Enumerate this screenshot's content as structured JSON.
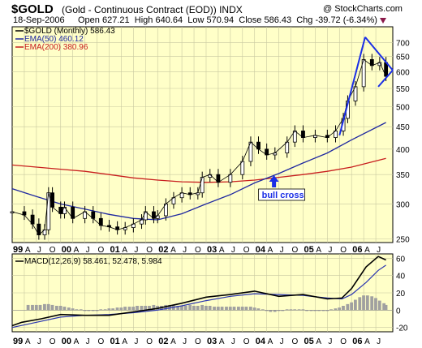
{
  "header": {
    "symbol": "$GOLD",
    "description": "(Gold - Continuous Contract (EOD))",
    "exchange": "INDX",
    "watermark": "@ StockCharts.com",
    "date": "18-Sep-2006",
    "open_label": "Open",
    "open": "627.21",
    "high_label": "High",
    "high": "640.64",
    "low_label": "Low",
    "low": "570.94",
    "close_label": "Close",
    "close": "586.43",
    "chg_label": "Chg",
    "chg": "-39.72 (-6.34%)"
  },
  "colors": {
    "panel_bg": "#ffffc8",
    "price_line": "#000000",
    "ema50": "#1f28a0",
    "ema200": "#c81e1e",
    "trendline": "#1a2ee6",
    "macd_line": "#000000",
    "signal_line": "#2a35b0",
    "histogram": "#a0a0a0",
    "arrow": "#1a2ee6"
  },
  "chart_data": [
    {
      "type": "line",
      "panel": "price",
      "legend": [
        {
          "label": "$GOLD (Monthly) 586.43",
          "color": "#000000"
        },
        {
          "label": "EMA(50) 460.12",
          "color": "#1f28a0"
        },
        {
          "label": "EMA(200) 380.96",
          "color": "#c81e1e"
        }
      ],
      "scale": "log",
      "ylim": [
        245,
        760
      ],
      "y_ticks": [
        250,
        300,
        350,
        400,
        450,
        500,
        550,
        600,
        650,
        700
      ],
      "x_tick_labels": [
        {
          "label": "99",
          "t": 1999.0,
          "bold": true
        },
        {
          "label": "A",
          "t": 1999.25
        },
        {
          "label": "J",
          "t": 1999.5
        },
        {
          "label": "O",
          "t": 1999.75
        },
        {
          "label": "00",
          "t": 2000.0,
          "bold": true
        },
        {
          "label": "A",
          "t": 2000.25
        },
        {
          "label": "J",
          "t": 2000.5
        },
        {
          "label": "O",
          "t": 2000.75
        },
        {
          "label": "01",
          "t": 2001.0,
          "bold": true
        },
        {
          "label": "A",
          "t": 2001.25
        },
        {
          "label": "J",
          "t": 2001.5
        },
        {
          "label": "O",
          "t": 2001.75
        },
        {
          "label": "02",
          "t": 2002.0,
          "bold": true
        },
        {
          "label": "A",
          "t": 2002.25
        },
        {
          "label": "J",
          "t": 2002.5
        },
        {
          "label": "O",
          "t": 2002.75
        },
        {
          "label": "03",
          "t": 2003.0,
          "bold": true
        },
        {
          "label": "A",
          "t": 2003.25
        },
        {
          "label": "J",
          "t": 2003.5
        },
        {
          "label": "O",
          "t": 2003.75
        },
        {
          "label": "04",
          "t": 2004.0,
          "bold": true
        },
        {
          "label": "A",
          "t": 2004.25
        },
        {
          "label": "J",
          "t": 2004.5
        },
        {
          "label": "O",
          "t": 2004.75
        },
        {
          "label": "05",
          "t": 2005.0,
          "bold": true
        },
        {
          "label": "A",
          "t": 2005.25
        },
        {
          "label": "J",
          "t": 2005.5
        },
        {
          "label": "O",
          "t": 2005.75
        },
        {
          "label": "06",
          "t": 2006.0,
          "bold": true
        },
        {
          "label": "A",
          "t": 2006.25
        },
        {
          "label": "J",
          "t": 2006.5
        }
      ],
      "xlim": [
        1999.0,
        2006.85
      ],
      "price": [
        {
          "t": 1999.0,
          "p": 288
        },
        {
          "t": 1999.25,
          "p": 283
        },
        {
          "t": 1999.42,
          "p": 270
        },
        {
          "t": 1999.55,
          "p": 255
        },
        {
          "t": 1999.67,
          "p": 262
        },
        {
          "t": 1999.75,
          "p": 318
        },
        {
          "t": 1999.83,
          "p": 295
        },
        {
          "t": 2000.0,
          "p": 285
        },
        {
          "t": 2000.08,
          "p": 295
        },
        {
          "t": 2000.25,
          "p": 278
        },
        {
          "t": 2000.5,
          "p": 288
        },
        {
          "t": 2000.67,
          "p": 278
        },
        {
          "t": 2000.83,
          "p": 268
        },
        {
          "t": 2001.0,
          "p": 266
        },
        {
          "t": 2001.17,
          "p": 262
        },
        {
          "t": 2001.33,
          "p": 265
        },
        {
          "t": 2001.5,
          "p": 270
        },
        {
          "t": 2001.67,
          "p": 276
        },
        {
          "t": 2001.75,
          "p": 288
        },
        {
          "t": 2001.92,
          "p": 278
        },
        {
          "t": 2002.0,
          "p": 282
        },
        {
          "t": 2002.17,
          "p": 300
        },
        {
          "t": 2002.33,
          "p": 310
        },
        {
          "t": 2002.5,
          "p": 318
        },
        {
          "t": 2002.67,
          "p": 315
        },
        {
          "t": 2002.83,
          "p": 318
        },
        {
          "t": 2002.92,
          "p": 345
        },
        {
          "t": 2003.08,
          "p": 350
        },
        {
          "t": 2003.25,
          "p": 336
        },
        {
          "t": 2003.5,
          "p": 350
        },
        {
          "t": 2003.75,
          "p": 375
        },
        {
          "t": 2003.92,
          "p": 415
        },
        {
          "t": 2004.08,
          "p": 400
        },
        {
          "t": 2004.25,
          "p": 388
        },
        {
          "t": 2004.42,
          "p": 392
        },
        {
          "t": 2004.67,
          "p": 415
        },
        {
          "t": 2004.83,
          "p": 440
        },
        {
          "t": 2005.0,
          "p": 425
        },
        {
          "t": 2005.25,
          "p": 430
        },
        {
          "t": 2005.5,
          "p": 425
        },
        {
          "t": 2005.67,
          "p": 440
        },
        {
          "t": 2005.83,
          "p": 470
        },
        {
          "t": 2005.92,
          "p": 515
        },
        {
          "t": 2006.08,
          "p": 555
        },
        {
          "t": 2006.25,
          "p": 640
        },
        {
          "t": 2006.42,
          "p": 620
        },
        {
          "t": 2006.58,
          "p": 630
        },
        {
          "t": 2006.71,
          "p": 586
        }
      ],
      "ema50": [
        {
          "t": 1999.0,
          "p": 325
        },
        {
          "t": 1999.5,
          "p": 312
        },
        {
          "t": 2000.0,
          "p": 300
        },
        {
          "t": 2000.5,
          "p": 292
        },
        {
          "t": 2001.0,
          "p": 284
        },
        {
          "t": 2001.5,
          "p": 278
        },
        {
          "t": 2002.0,
          "p": 276
        },
        {
          "t": 2002.5,
          "p": 285
        },
        {
          "t": 2003.0,
          "p": 300
        },
        {
          "t": 2003.5,
          "p": 315
        },
        {
          "t": 2004.0,
          "p": 335
        },
        {
          "t": 2004.5,
          "p": 352
        },
        {
          "t": 2005.0,
          "p": 372
        },
        {
          "t": 2005.5,
          "p": 392
        },
        {
          "t": 2006.0,
          "p": 420
        },
        {
          "t": 2006.71,
          "p": 460
        }
      ],
      "ema200": [
        {
          "t": 1999.0,
          "p": 368
        },
        {
          "t": 1999.5,
          "p": 364
        },
        {
          "t": 2000.0,
          "p": 360
        },
        {
          "t": 2000.5,
          "p": 356
        },
        {
          "t": 2001.0,
          "p": 350
        },
        {
          "t": 2001.5,
          "p": 344
        },
        {
          "t": 2002.0,
          "p": 340
        },
        {
          "t": 2002.5,
          "p": 337
        },
        {
          "t": 2003.0,
          "p": 336
        },
        {
          "t": 2003.5,
          "p": 337
        },
        {
          "t": 2004.0,
          "p": 340
        },
        {
          "t": 2004.5,
          "p": 345
        },
        {
          "t": 2005.0,
          "p": 350
        },
        {
          "t": 2005.5,
          "p": 356
        },
        {
          "t": 2006.0,
          "p": 364
        },
        {
          "t": 2006.71,
          "p": 381
        }
      ],
      "annotation": {
        "label": "bull cross",
        "t": 2004.4,
        "p": 340
      }
    },
    {
      "type": "line",
      "panel": "macd",
      "legend": [
        {
          "label": "MACD(12,26,9) 58.461, 52.478, 5.984",
          "color": "#000000"
        }
      ],
      "ylim": [
        -25,
        65
      ],
      "y_ticks": [
        -20,
        0,
        20,
        40,
        60
      ],
      "macd": [
        {
          "t": 1999.0,
          "v": -18
        },
        {
          "t": 1999.2,
          "v": -14
        },
        {
          "t": 1999.6,
          "v": -10
        },
        {
          "t": 2000.0,
          "v": -5
        },
        {
          "t": 2000.5,
          "v": -6
        },
        {
          "t": 2001.0,
          "v": -6
        },
        {
          "t": 2001.5,
          "v": -2
        },
        {
          "t": 2002.0,
          "v": 2
        },
        {
          "t": 2002.5,
          "v": 8
        },
        {
          "t": 2003.0,
          "v": 15
        },
        {
          "t": 2003.5,
          "v": 18
        },
        {
          "t": 2004.0,
          "v": 22
        },
        {
          "t": 2004.5,
          "v": 16
        },
        {
          "t": 2005.0,
          "v": 18
        },
        {
          "t": 2005.5,
          "v": 13
        },
        {
          "t": 2005.8,
          "v": 14
        },
        {
          "t": 2006.0,
          "v": 25
        },
        {
          "t": 2006.3,
          "v": 50
        },
        {
          "t": 2006.55,
          "v": 62
        },
        {
          "t": 2006.71,
          "v": 58
        }
      ],
      "signal": [
        {
          "t": 1999.0,
          "v": -20
        },
        {
          "t": 1999.5,
          "v": -14
        },
        {
          "t": 2000.0,
          "v": -8
        },
        {
          "t": 2000.5,
          "v": -6
        },
        {
          "t": 2001.0,
          "v": -5
        },
        {
          "t": 2001.5,
          "v": -3
        },
        {
          "t": 2002.0,
          "v": 0
        },
        {
          "t": 2002.5,
          "v": 5
        },
        {
          "t": 2003.0,
          "v": 11
        },
        {
          "t": 2003.5,
          "v": 16
        },
        {
          "t": 2004.0,
          "v": 19
        },
        {
          "t": 2004.5,
          "v": 18
        },
        {
          "t": 2005.0,
          "v": 17
        },
        {
          "t": 2005.5,
          "v": 14
        },
        {
          "t": 2005.8,
          "v": 13
        },
        {
          "t": 2006.0,
          "v": 18
        },
        {
          "t": 2006.3,
          "v": 32
        },
        {
          "t": 2006.55,
          "v": 46
        },
        {
          "t": 2006.71,
          "v": 52
        }
      ],
      "histogram": [
        {
          "t": 1999.33,
          "v": 6
        },
        {
          "t": 1999.42,
          "v": 6
        },
        {
          "t": 1999.5,
          "v": 6
        },
        {
          "t": 1999.58,
          "v": 6
        },
        {
          "t": 1999.67,
          "v": 7
        },
        {
          "t": 1999.75,
          "v": 7
        },
        {
          "t": 1999.83,
          "v": 6
        },
        {
          "t": 1999.92,
          "v": 5
        },
        {
          "t": 2000.0,
          "v": 5
        },
        {
          "t": 2000.08,
          "v": 4
        },
        {
          "t": 2000.17,
          "v": 3
        },
        {
          "t": 2000.25,
          "v": 2
        },
        {
          "t": 2000.33,
          "v": 1
        },
        {
          "t": 2000.42,
          "v": 1
        },
        {
          "t": 2000.5,
          "v": -1
        },
        {
          "t": 2000.58,
          "v": -1
        },
        {
          "t": 2000.67,
          "v": -1
        },
        {
          "t": 2000.75,
          "v": -1
        },
        {
          "t": 2000.83,
          "v": 1
        },
        {
          "t": 2000.92,
          "v": 1
        },
        {
          "t": 2001.0,
          "v": 2
        },
        {
          "t": 2001.08,
          "v": 2
        },
        {
          "t": 2001.17,
          "v": 3
        },
        {
          "t": 2001.25,
          "v": 3
        },
        {
          "t": 2001.33,
          "v": 4
        },
        {
          "t": 2001.42,
          "v": 4
        },
        {
          "t": 2001.5,
          "v": 4
        },
        {
          "t": 2001.58,
          "v": 5
        },
        {
          "t": 2001.67,
          "v": 5
        },
        {
          "t": 2001.75,
          "v": 5
        },
        {
          "t": 2001.83,
          "v": 5
        },
        {
          "t": 2001.92,
          "v": 6
        },
        {
          "t": 2002.0,
          "v": 5
        },
        {
          "t": 2002.08,
          "v": 5
        },
        {
          "t": 2002.17,
          "v": 6
        },
        {
          "t": 2002.25,
          "v": 6
        },
        {
          "t": 2002.33,
          "v": 6
        },
        {
          "t": 2002.42,
          "v": 5
        },
        {
          "t": 2002.5,
          "v": 5
        },
        {
          "t": 2002.58,
          "v": 5
        },
        {
          "t": 2002.67,
          "v": 6
        },
        {
          "t": 2002.75,
          "v": 5
        },
        {
          "t": 2002.83,
          "v": 5
        },
        {
          "t": 2002.92,
          "v": 6
        },
        {
          "t": 2003.0,
          "v": 5
        },
        {
          "t": 2003.08,
          "v": 5
        },
        {
          "t": 2003.17,
          "v": 4
        },
        {
          "t": 2003.25,
          "v": 4
        },
        {
          "t": 2003.33,
          "v": 4
        },
        {
          "t": 2003.42,
          "v": 4
        },
        {
          "t": 2003.5,
          "v": 4
        },
        {
          "t": 2003.58,
          "v": 4
        },
        {
          "t": 2003.67,
          "v": 4
        },
        {
          "t": 2003.75,
          "v": 4
        },
        {
          "t": 2003.83,
          "v": 4
        },
        {
          "t": 2003.92,
          "v": 4
        },
        {
          "t": 2004.0,
          "v": 3
        },
        {
          "t": 2004.08,
          "v": 2
        },
        {
          "t": 2004.17,
          "v": 1
        },
        {
          "t": 2004.25,
          "v": -1
        },
        {
          "t": 2004.33,
          "v": -2
        },
        {
          "t": 2004.42,
          "v": -2
        },
        {
          "t": 2004.5,
          "v": -1
        },
        {
          "t": 2004.58,
          "v": -1
        },
        {
          "t": 2004.67,
          "v": 1
        },
        {
          "t": 2004.75,
          "v": 1
        },
        {
          "t": 2004.83,
          "v": 1
        },
        {
          "t": 2004.92,
          "v": 1
        },
        {
          "t": 2005.0,
          "v": 1
        },
        {
          "t": 2005.08,
          "v": -1
        },
        {
          "t": 2005.17,
          "v": -1
        },
        {
          "t": 2005.25,
          "v": -1
        },
        {
          "t": 2005.33,
          "v": -1
        },
        {
          "t": 2005.42,
          "v": -1
        },
        {
          "t": 2005.5,
          "v": -1
        },
        {
          "t": 2005.58,
          "v": 1
        },
        {
          "t": 2005.67,
          "v": 2
        },
        {
          "t": 2005.75,
          "v": 3
        },
        {
          "t": 2005.83,
          "v": 5
        },
        {
          "t": 2005.92,
          "v": 7
        },
        {
          "t": 2006.0,
          "v": 9
        },
        {
          "t": 2006.08,
          "v": 12
        },
        {
          "t": 2006.17,
          "v": 15
        },
        {
          "t": 2006.25,
          "v": 17
        },
        {
          "t": 2006.33,
          "v": 17
        },
        {
          "t": 2006.42,
          "v": 16
        },
        {
          "t": 2006.5,
          "v": 14
        },
        {
          "t": 2006.58,
          "v": 11
        },
        {
          "t": 2006.67,
          "v": 8
        },
        {
          "t": 2006.71,
          "v": 6
        }
      ]
    }
  ]
}
